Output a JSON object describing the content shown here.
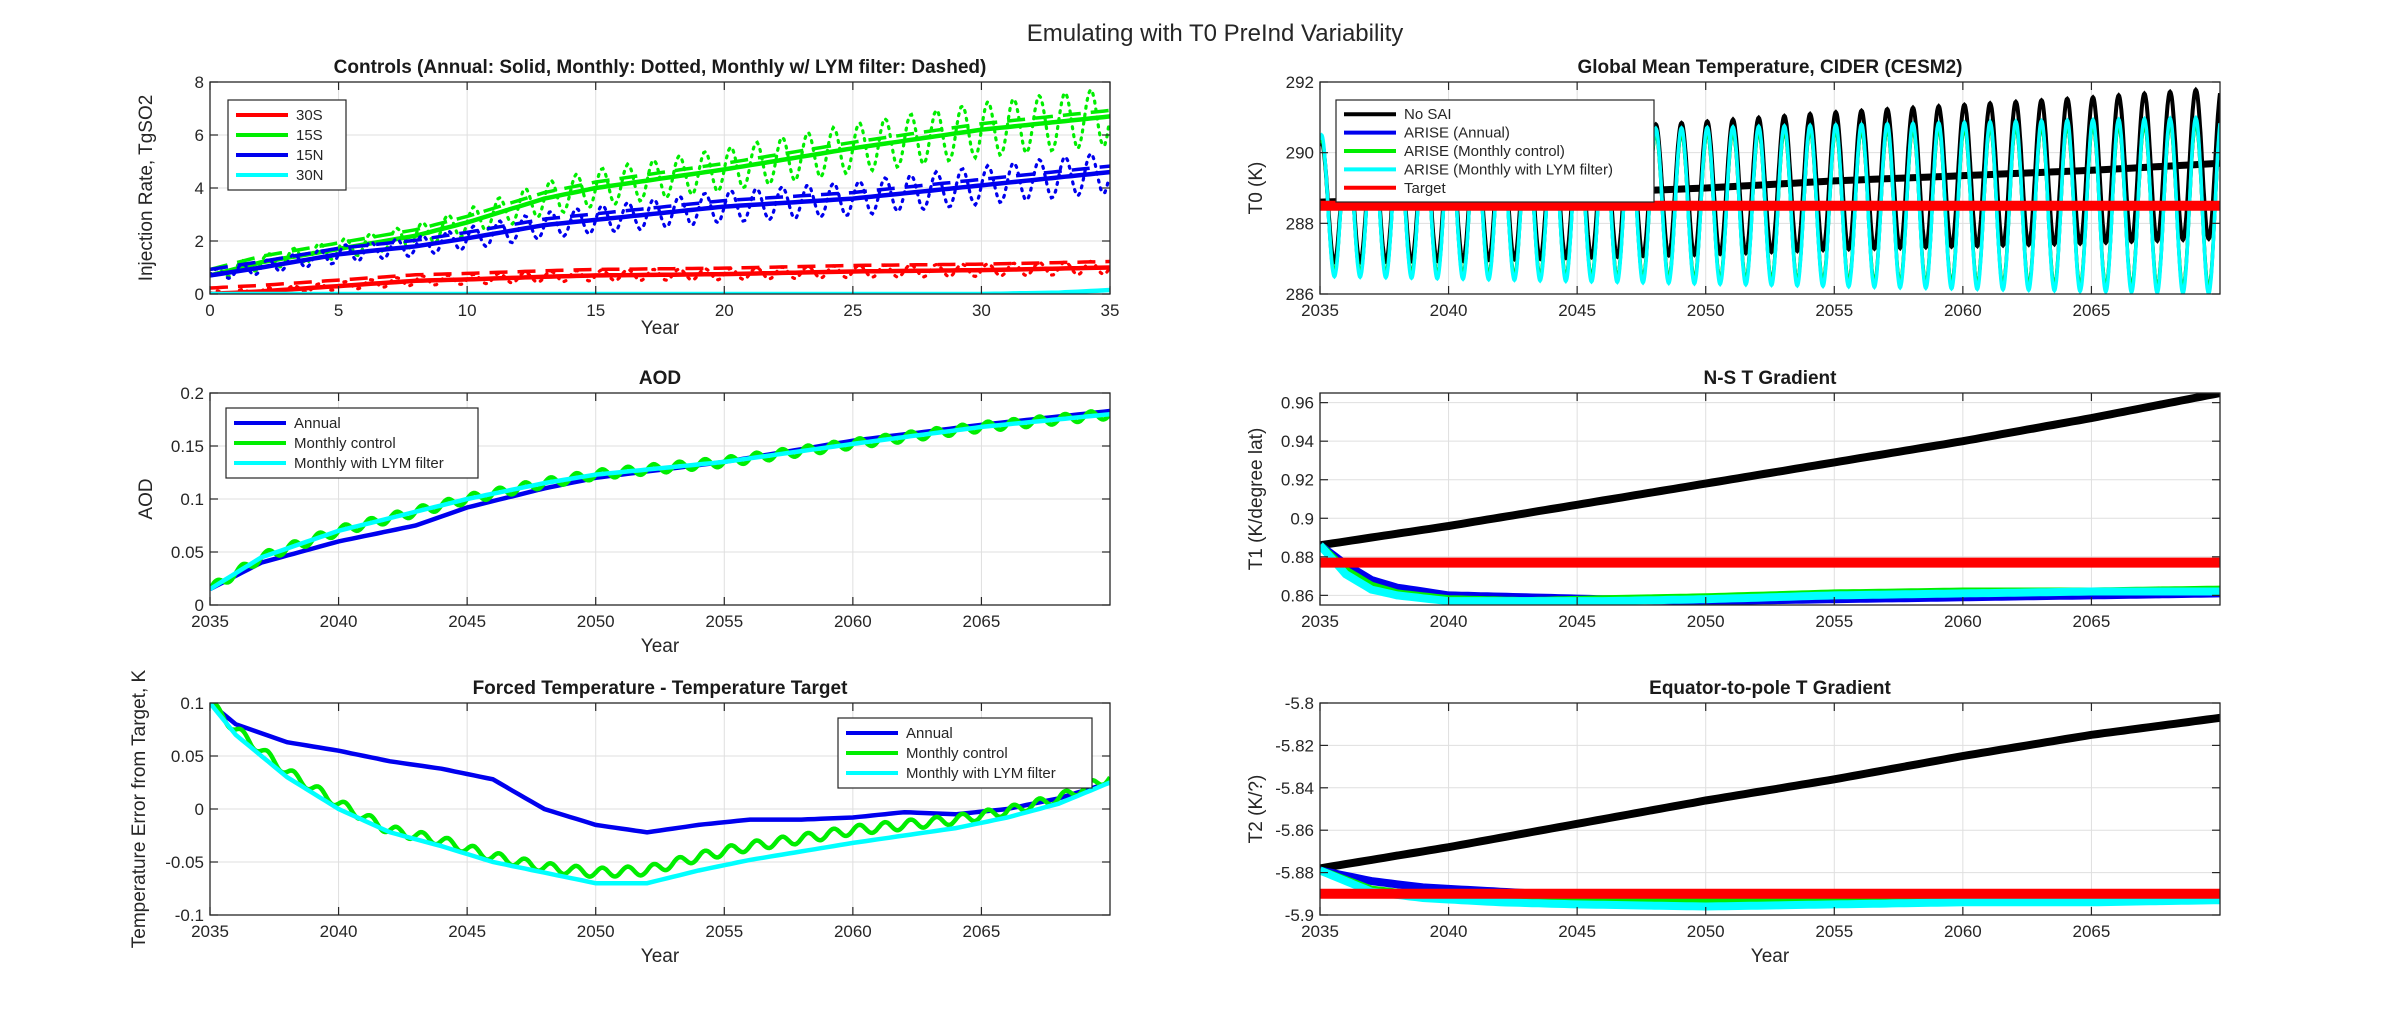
{
  "suptitle": "Emulating with T0 PreInd Variability",
  "colors": {
    "red": "#ff0000",
    "green": "#00ee00",
    "blue": "#0000ee",
    "cyan": "#00ffff",
    "black": "#000000"
  },
  "chart_data": [
    {
      "type": "line",
      "title": "Controls (Annual: Solid, Monthly: Dotted, Monthly w/ LYM filter: Dashed)",
      "xlabel": "Year",
      "ylabel": "Injection Rate, TgSO2",
      "xlim": [
        0,
        35
      ],
      "ylim": [
        0,
        8
      ],
      "xticks": [
        0,
        5,
        10,
        15,
        20,
        25,
        30,
        35
      ],
      "yticks": [
        0,
        2,
        4,
        6,
        8
      ],
      "grid": true,
      "legend_position": "top-left",
      "series": [
        {
          "name": "30S",
          "color": "red",
          "x": [
            0,
            2,
            5,
            8,
            10,
            13,
            15,
            20,
            25,
            30,
            35
          ],
          "y": [
            0,
            0.1,
            0.3,
            0.5,
            0.55,
            0.65,
            0.7,
            0.75,
            0.85,
            0.9,
            1.0
          ]
        },
        {
          "name": "15S",
          "color": "green",
          "x": [
            0,
            2,
            5,
            8,
            10,
            13,
            15,
            20,
            25,
            30,
            35
          ],
          "y": [
            0.7,
            1.2,
            1.7,
            2.2,
            2.7,
            3.6,
            4.0,
            4.7,
            5.5,
            6.2,
            6.7
          ]
        },
        {
          "name": "15N",
          "color": "blue",
          "x": [
            0,
            2,
            5,
            8,
            10,
            13,
            15,
            20,
            25,
            30,
            35
          ],
          "y": [
            0.7,
            1.0,
            1.5,
            1.8,
            2.1,
            2.6,
            2.8,
            3.3,
            3.6,
            4.1,
            4.6
          ]
        },
        {
          "name": "30N",
          "color": "cyan",
          "x": [
            0,
            5,
            10,
            15,
            20,
            25,
            30,
            33,
            35
          ],
          "y": [
            0,
            0,
            0,
            0,
            0,
            0,
            0,
            0.05,
            0.15
          ]
        }
      ]
    },
    {
      "type": "line",
      "title": "AOD",
      "xlabel": "Year",
      "ylabel": "AOD",
      "xlim": [
        2035,
        2070
      ],
      "ylim": [
        0,
        0.2
      ],
      "xticks": [
        2035,
        2040,
        2045,
        2050,
        2055,
        2060,
        2065
      ],
      "yticks": [
        0,
        0.05,
        0.1,
        0.15,
        0.2
      ],
      "grid": true,
      "legend_position": "top-left",
      "series": [
        {
          "name": "Annual",
          "color": "blue",
          "x": [
            2035,
            2037,
            2040,
            2043,
            2045,
            2048,
            2050,
            2055,
            2060,
            2065,
            2070
          ],
          "y": [
            0.015,
            0.04,
            0.06,
            0.075,
            0.092,
            0.11,
            0.12,
            0.135,
            0.155,
            0.17,
            0.183
          ]
        },
        {
          "name": "Monthly control",
          "color": "green",
          "x": [
            2035,
            2037,
            2040,
            2043,
            2045,
            2048,
            2050,
            2055,
            2060,
            2065,
            2070
          ],
          "y": [
            0.015,
            0.045,
            0.07,
            0.088,
            0.1,
            0.115,
            0.123,
            0.135,
            0.152,
            0.168,
            0.18
          ]
        },
        {
          "name": "Monthly with LYM filter",
          "color": "cyan",
          "x": [
            2035,
            2037,
            2040,
            2043,
            2045,
            2048,
            2050,
            2055,
            2060,
            2065,
            2070
          ],
          "y": [
            0.015,
            0.045,
            0.07,
            0.088,
            0.1,
            0.115,
            0.123,
            0.135,
            0.152,
            0.168,
            0.18
          ]
        }
      ]
    },
    {
      "type": "line",
      "title": "Forced Temperature - Temperature Target",
      "xlabel": "Year",
      "ylabel": "Temperature Error from Target, K",
      "xlim": [
        2035,
        2070
      ],
      "ylim": [
        -0.1,
        0.1
      ],
      "xticks": [
        2035,
        2040,
        2045,
        2050,
        2055,
        2060,
        2065
      ],
      "yticks": [
        -0.1,
        -0.05,
        0,
        0.05,
        0.1
      ],
      "grid": true,
      "legend_position": "top-right",
      "series": [
        {
          "name": "Annual",
          "color": "blue",
          "x": [
            2035,
            2036,
            2038,
            2040,
            2042,
            2044,
            2046,
            2048,
            2050,
            2052,
            2054,
            2056,
            2058,
            2060,
            2062,
            2064,
            2066,
            2068,
            2070
          ],
          "y": [
            0.1,
            0.08,
            0.063,
            0.055,
            0.045,
            0.038,
            0.028,
            0.0,
            -0.015,
            -0.022,
            -0.015,
            -0.01,
            -0.01,
            -0.008,
            -0.003,
            -0.005,
            0.0,
            0.01,
            0.025
          ]
        },
        {
          "name": "Monthly control",
          "color": "green",
          "x": [
            2035,
            2036,
            2038,
            2040,
            2042,
            2044,
            2046,
            2048,
            2050,
            2052,
            2054,
            2056,
            2058,
            2060,
            2062,
            2064,
            2066,
            2068,
            2070
          ],
          "y": [
            0.1,
            0.075,
            0.035,
            0.005,
            -0.02,
            -0.03,
            -0.045,
            -0.055,
            -0.06,
            -0.058,
            -0.045,
            -0.035,
            -0.028,
            -0.02,
            -0.015,
            -0.01,
            -0.002,
            0.01,
            0.03
          ]
        },
        {
          "name": "Monthly with LYM filter",
          "color": "cyan",
          "x": [
            2035,
            2036,
            2038,
            2040,
            2042,
            2044,
            2046,
            2048,
            2050,
            2052,
            2054,
            2056,
            2058,
            2060,
            2062,
            2064,
            2066,
            2068,
            2070
          ],
          "y": [
            0.1,
            0.07,
            0.03,
            0.0,
            -0.022,
            -0.035,
            -0.05,
            -0.06,
            -0.07,
            -0.07,
            -0.058,
            -0.048,
            -0.04,
            -0.032,
            -0.025,
            -0.018,
            -0.008,
            0.005,
            0.025
          ]
        }
      ]
    },
    {
      "type": "line",
      "title": "Global Mean Temperature, CIDER (CESM2)",
      "xlabel": "",
      "ylabel": "T0 (K)",
      "xlim": [
        2035,
        2070
      ],
      "ylim": [
        286,
        292
      ],
      "xticks": [
        2035,
        2040,
        2045,
        2050,
        2055,
        2060,
        2065
      ],
      "yticks": [
        286,
        288,
        290,
        292
      ],
      "grid": true,
      "legend_position": "top-left",
      "series": [
        {
          "name": "No SAI",
          "color": "black",
          "x": [
            2035,
            2040,
            2045,
            2050,
            2055,
            2060,
            2065,
            2070
          ],
          "y": [
            288.6,
            288.7,
            288.85,
            289.0,
            289.2,
            289.35,
            289.5,
            289.7
          ]
        },
        {
          "name": "ARISE (Annual)",
          "color": "blue",
          "x": [
            2035,
            2070
          ],
          "y": [
            288.5,
            288.5
          ]
        },
        {
          "name": "ARISE (Monthly control)",
          "color": "green",
          "x": [
            2035,
            2070
          ],
          "y": [
            288.5,
            288.5
          ]
        },
        {
          "name": "ARISE (Monthly with LYM filter)",
          "color": "cyan",
          "x": [
            2035,
            2070
          ],
          "y": [
            288.5,
            288.5
          ]
        },
        {
          "name": "Target",
          "color": "red",
          "x": [
            2035,
            2070
          ],
          "y": [
            288.5,
            288.5
          ]
        }
      ]
    },
    {
      "type": "line",
      "title": "N-S T Gradient",
      "xlabel": "",
      "ylabel": "T1 (K/degree lat)",
      "xlim": [
        2035,
        2070
      ],
      "ylim": [
        0.855,
        0.965
      ],
      "xticks": [
        2035,
        2040,
        2045,
        2050,
        2055,
        2060,
        2065
      ],
      "yticks": [
        0.86,
        0.88,
        0.9,
        0.92,
        0.94,
        0.96
      ],
      "grid": true,
      "series": [
        {
          "name": "No SAI",
          "color": "black",
          "x": [
            2035,
            2040,
            2045,
            2050,
            2055,
            2060,
            2065,
            2070
          ],
          "y": [
            0.886,
            0.896,
            0.907,
            0.918,
            0.929,
            0.94,
            0.952,
            0.965
          ]
        },
        {
          "name": "ARISE (Annual)",
          "color": "blue",
          "x": [
            2035,
            2036,
            2037,
            2038,
            2040,
            2043,
            2046,
            2050,
            2055,
            2060,
            2065,
            2070
          ],
          "y": [
            0.886,
            0.876,
            0.868,
            0.864,
            0.86,
            0.859,
            0.858,
            0.857,
            0.858,
            0.859,
            0.86,
            0.861
          ]
        },
        {
          "name": "ARISE (Monthly control)",
          "color": "green",
          "x": [
            2035,
            2036,
            2037,
            2038,
            2040,
            2043,
            2046,
            2050,
            2055,
            2060,
            2065,
            2070
          ],
          "y": [
            0.886,
            0.873,
            0.865,
            0.861,
            0.858,
            0.857,
            0.858,
            0.859,
            0.861,
            0.862,
            0.862,
            0.863
          ]
        },
        {
          "name": "ARISE (Monthly with LYM filter)",
          "color": "cyan",
          "x": [
            2035,
            2036,
            2037,
            2038,
            2040,
            2043,
            2046,
            2050,
            2055,
            2060,
            2065,
            2070
          ],
          "y": [
            0.886,
            0.871,
            0.863,
            0.86,
            0.857,
            0.857,
            0.857,
            0.858,
            0.86,
            0.861,
            0.862,
            0.862
          ]
        },
        {
          "name": "Target",
          "color": "red",
          "x": [
            2035,
            2070
          ],
          "y": [
            0.877,
            0.877
          ]
        }
      ]
    },
    {
      "type": "line",
      "title": "Equator-to-pole T Gradient",
      "xlabel": "Year",
      "ylabel": "T2 (K/?)",
      "xlim": [
        2035,
        2070
      ],
      "ylim": [
        -5.9,
        -5.8
      ],
      "xticks": [
        2035,
        2040,
        2045,
        2050,
        2055,
        2060,
        2065
      ],
      "yticks": [
        -5.9,
        -5.88,
        -5.86,
        -5.84,
        -5.82,
        -5.8
      ],
      "grid": true,
      "series": [
        {
          "name": "No SAI",
          "color": "black",
          "x": [
            2035,
            2040,
            2045,
            2050,
            2055,
            2060,
            2065,
            2070
          ],
          "y": [
            -5.878,
            -5.868,
            -5.857,
            -5.846,
            -5.836,
            -5.825,
            -5.815,
            -5.807
          ]
        },
        {
          "name": "ARISE (Annual)",
          "color": "blue",
          "x": [
            2035,
            2037,
            2039,
            2042,
            2045,
            2050,
            2055,
            2060,
            2065,
            2070
          ],
          "y": [
            -5.879,
            -5.884,
            -5.887,
            -5.889,
            -5.891,
            -5.893,
            -5.893,
            -5.892,
            -5.892,
            -5.892
          ]
        },
        {
          "name": "ARISE (Monthly control)",
          "color": "green",
          "x": [
            2035,
            2037,
            2039,
            2042,
            2045,
            2050,
            2055,
            2060,
            2065,
            2070
          ],
          "y": [
            -5.879,
            -5.888,
            -5.891,
            -5.893,
            -5.894,
            -5.894,
            -5.894,
            -5.893,
            -5.893,
            -5.892
          ]
        },
        {
          "name": "ARISE (Monthly with LYM filter)",
          "color": "cyan",
          "x": [
            2035,
            2037,
            2039,
            2042,
            2045,
            2050,
            2055,
            2060,
            2065,
            2070
          ],
          "y": [
            -5.879,
            -5.889,
            -5.892,
            -5.894,
            -5.895,
            -5.896,
            -5.895,
            -5.894,
            -5.894,
            -5.893
          ]
        },
        {
          "name": "Target",
          "color": "red",
          "x": [
            2035,
            2070
          ],
          "y": [
            -5.89,
            -5.89
          ]
        }
      ]
    }
  ]
}
